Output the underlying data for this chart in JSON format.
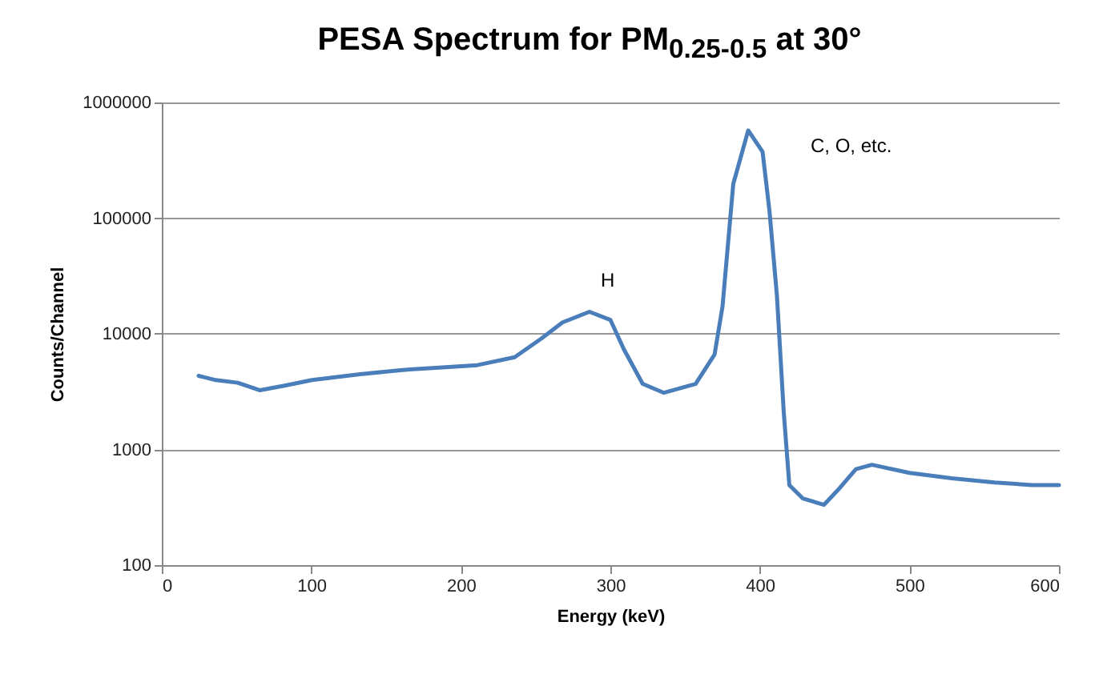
{
  "chart_data": {
    "type": "line",
    "title": "PESA Spectrum for PM$_{0.25-0.5}$ at 30°",
    "xlabel": "Energy (keV)",
    "ylabel": "Counts/Channel",
    "x": [
      24.6,
      36,
      50.7,
      65.7,
      82.8,
      100.5,
      132.6,
      161,
      189.7,
      211,
      236,
      254,
      268,
      286,
      300,
      309,
      321.6,
      335.8,
      357,
      369.7,
      375,
      382.2,
      392.2,
      401.8,
      406.4,
      411.4,
      416,
      419.7,
      428.6,
      442.8,
      453.5,
      464.2,
      474.9,
      500,
      528.3,
      557,
      582,
      600
    ],
    "series": [
      {
        "color": "#4a7ebb",
        "values": [
          4330,
          3980,
          3775,
          3250,
          3575,
          3980,
          4470,
          4870,
          5140,
          5360,
          6280,
          9120,
          12540,
          15500,
          13200,
          7360,
          3690,
          3090,
          3690,
          6630,
          17200,
          197700,
          573000,
          374000,
          116000,
          21300,
          2060,
          492,
          378,
          332,
          466,
          676,
          737,
          628,
          564,
          519,
          492,
          492
        ]
      }
    ],
    "xlim": [
      0,
      600
    ],
    "xticks": [
      0,
      100,
      200,
      300,
      400,
      500,
      600
    ],
    "ylim": [
      100,
      1000000
    ],
    "yticks": [
      100,
      1000,
      10000,
      100000,
      1000000
    ],
    "log": true,
    "grid": "y",
    "legend": false,
    "marker": "none",
    "line_style": "solid",
    "annotations": [
      "H",
      "C, O, etc."
    ]
  }
}
